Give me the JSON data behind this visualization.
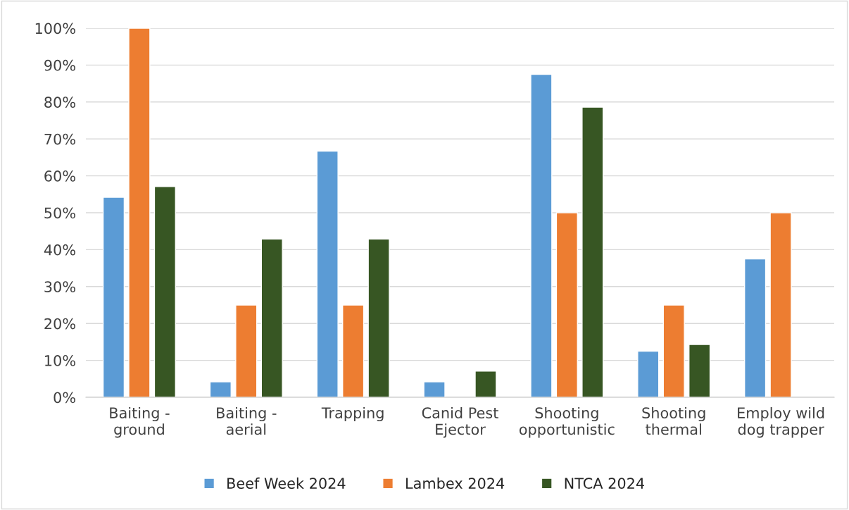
{
  "chart_data": {
    "type": "bar",
    "categories": [
      "Baiting -\nground",
      "Baiting -\naerial",
      "Trapping",
      "Canid Pest\nEjector",
      "Shooting\nopportunistic",
      "Shooting\nthermal",
      "Employ wild\ndog trapper"
    ],
    "series": [
      {
        "name": "Beef Week 2024",
        "color": "#5b9bd5",
        "values": [
          54.2,
          4.2,
          66.7,
          4.2,
          87.5,
          12.5,
          37.5
        ]
      },
      {
        "name": "Lambex 2024",
        "color": "#ed7d31",
        "values": [
          100,
          25,
          25,
          null,
          50,
          25,
          50
        ]
      },
      {
        "name": "NTCA 2024",
        "color": "#375623",
        "values": [
          57.1,
          42.9,
          42.9,
          7.1,
          78.6,
          14.3,
          null
        ]
      }
    ],
    "ylim": [
      0,
      100
    ],
    "yticks": [
      {
        "value": 0,
        "label": "0%"
      },
      {
        "value": 10,
        "label": "10%"
      },
      {
        "value": 20,
        "label": "20%"
      },
      {
        "value": 30,
        "label": "30%"
      },
      {
        "value": 40,
        "label": "40%"
      },
      {
        "value": 50,
        "label": "50%"
      },
      {
        "value": 60,
        "label": "60%"
      },
      {
        "value": 70,
        "label": "70%"
      },
      {
        "value": 80,
        "label": "80%"
      },
      {
        "value": 90,
        "label": "90%"
      },
      {
        "value": 100,
        "label": "100%"
      }
    ],
    "grid": "y",
    "legend": "bottom"
  }
}
